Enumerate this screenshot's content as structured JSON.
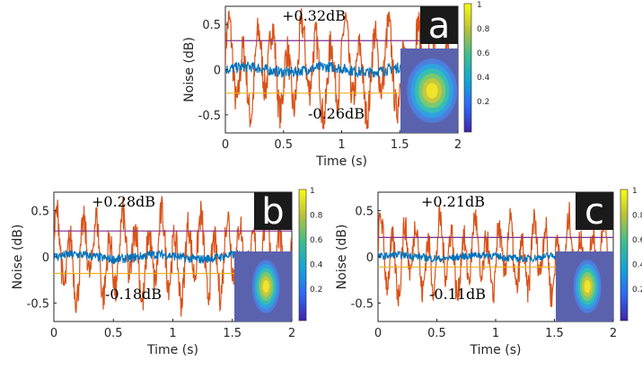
{
  "chart_data": [
    {
      "type": "line",
      "panel_letter": "a",
      "xlabel": "Time (s)",
      "ylabel": "Noise (dB)",
      "xlim": [
        0,
        2
      ],
      "ylim": [
        -0.7,
        0.7
      ],
      "xticks": [
        "0",
        "0.5",
        "1",
        "1.5",
        "2"
      ],
      "yticks": [
        "-0.5",
        "0",
        "0.5"
      ],
      "annotations": [
        "+0.32dB",
        "-0.26dB"
      ],
      "upper_line": 0.32,
      "lower_line": -0.26,
      "series": [
        {
          "color": "#d95319",
          "amplitude": 0.5,
          "period_s": 0.125
        },
        {
          "color": "#0072bd",
          "amplitude": 0.06
        }
      ],
      "colorbar_ticks": [
        "1",
        "0.8",
        "0.6",
        "0.4",
        "0.2"
      ]
    },
    {
      "type": "line",
      "panel_letter": "b",
      "xlabel": "Time (s)",
      "ylabel": "Noise (dB)",
      "xlim": [
        0,
        2
      ],
      "ylim": [
        -0.7,
        0.7
      ],
      "xticks": [
        "0",
        "0.5",
        "1",
        "1.5",
        "2"
      ],
      "yticks": [
        "-0.5",
        "0",
        "0.5"
      ],
      "annotations": [
        "+0.28dB",
        "-0.18dB"
      ],
      "upper_line": 0.28,
      "lower_line": -0.18,
      "series": [
        {
          "color": "#d95319",
          "amplitude": 0.45,
          "period_s": 0.11
        },
        {
          "color": "#0072bd",
          "amplitude": 0.05
        }
      ],
      "colorbar_ticks": [
        "1",
        "0.8",
        "0.6",
        "0.4",
        "0.2"
      ]
    },
    {
      "type": "line",
      "panel_letter": "c",
      "xlabel": "Time (s)",
      "ylabel": "Noise (dB)",
      "xlim": [
        0,
        2
      ],
      "ylim": [
        -0.7,
        0.7
      ],
      "xticks": [
        "0",
        "0.5",
        "1",
        "1.5",
        "2"
      ],
      "yticks": [
        "-0.5",
        "0",
        "0.5"
      ],
      "annotations": [
        "+0.21dB",
        "-0.11dB"
      ],
      "upper_line": 0.21,
      "lower_line": -0.11,
      "series": [
        {
          "color": "#d95319",
          "amplitude": 0.4,
          "period_s": 0.1
        },
        {
          "color": "#0072bd",
          "amplitude": 0.04
        }
      ],
      "colorbar_ticks": [
        "1",
        "0.8",
        "0.6",
        "0.4",
        "0.2"
      ]
    }
  ]
}
